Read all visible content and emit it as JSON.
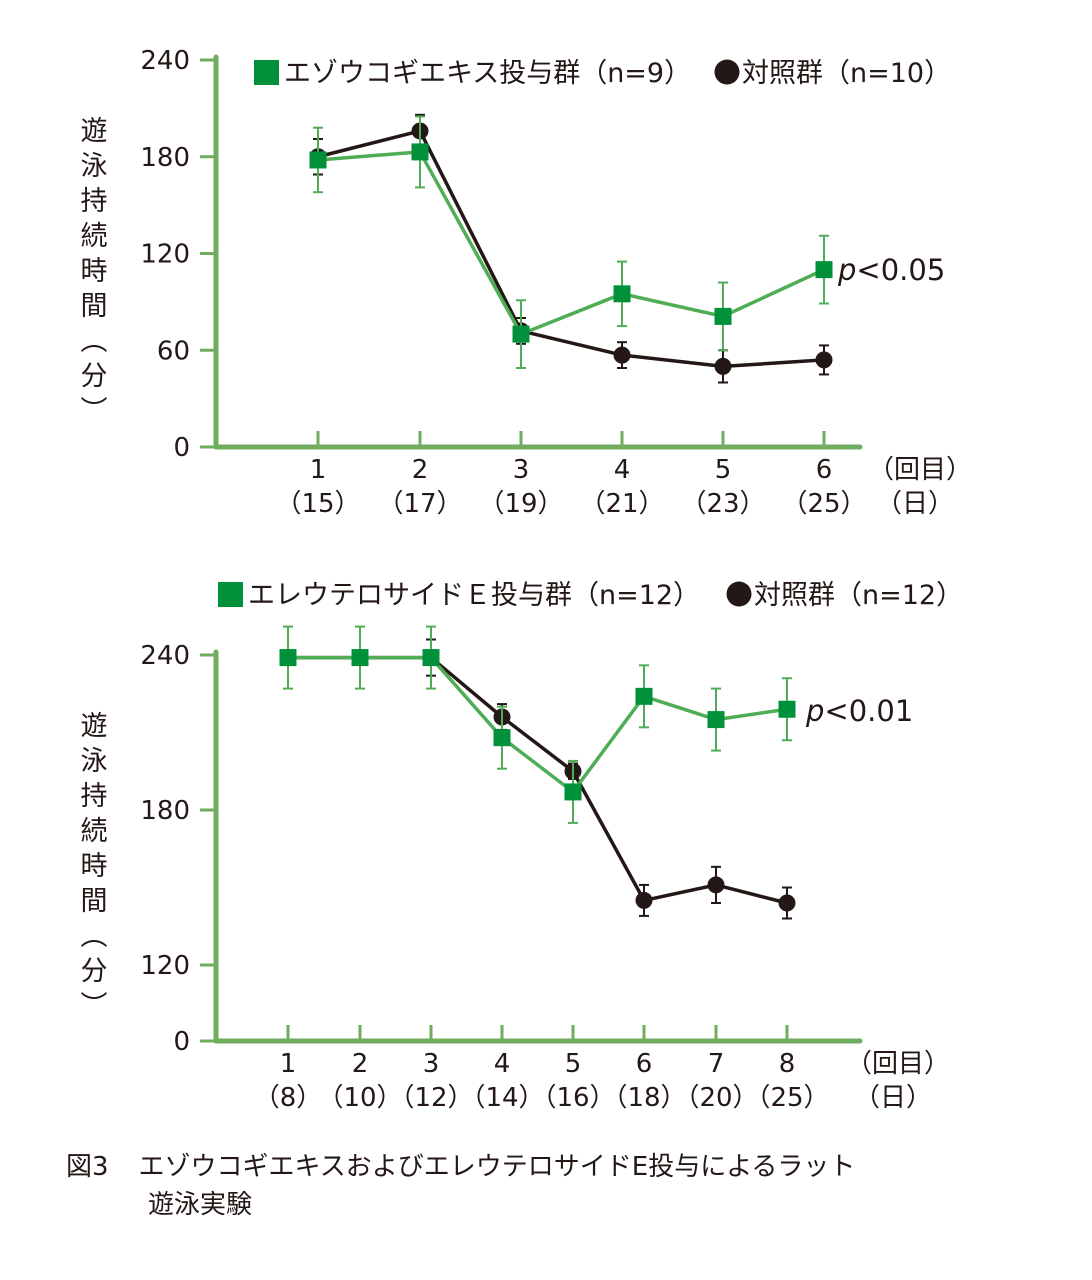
{
  "colors": {
    "axis": "#6fae5e",
    "treatment_marker": "#00913a",
    "treatment_line": "#4fae55",
    "control": "#231815"
  },
  "chart_data": [
    {
      "type": "line",
      "title": "",
      "legend": [
        {
          "marker": "square",
          "label": "エゾウコギエキス投与群（n=9）"
        },
        {
          "marker": "circle",
          "label": "対照群（n=10）"
        }
      ],
      "legend_placement": "top",
      "ylabel": "遊泳持続時間（分）",
      "ylabel_chars": [
        "遊",
        "泳",
        "持",
        "続",
        "時",
        "間",
        "︵",
        "分",
        "︶"
      ],
      "xlabel_line1": "（回目）",
      "xlabel_line2": "（日）",
      "yticks": [
        0,
        60,
        120,
        180,
        240
      ],
      "ylim": [
        0,
        240
      ],
      "categories": [
        "1",
        "2",
        "3",
        "4",
        "5",
        "6"
      ],
      "category_days": [
        "（15）",
        "（17）",
        "（19）",
        "（21）",
        "（23）",
        "（25）"
      ],
      "series": [
        {
          "name": "エゾウコギエキス投与群",
          "marker": "square",
          "values": [
            178,
            183,
            70,
            95,
            81,
            110
          ],
          "errors": [
            20,
            22,
            21,
            20,
            21,
            21
          ]
        },
        {
          "name": "対照群",
          "marker": "circle",
          "values": [
            180,
            196,
            72,
            57,
            50,
            54
          ],
          "errors": [
            11,
            10,
            8,
            8,
            10,
            9
          ]
        }
      ],
      "annotation": "p<0.05",
      "annotation_p": "p",
      "annotation_rest": "<0.05",
      "grid": false
    },
    {
      "type": "line",
      "title": "",
      "legend": [
        {
          "marker": "square",
          "label": "エレウテロサイドＥ投与群（n=12）"
        },
        {
          "marker": "circle",
          "label": "対照群（n=12）"
        }
      ],
      "legend_placement": "top",
      "ylabel": "遊泳持続時間（分）",
      "ylabel_chars": [
        "遊",
        "泳",
        "持",
        "続",
        "時",
        "間",
        "︵",
        "分",
        "︶"
      ],
      "xlabel_line1": "（回目）",
      "xlabel_line2": "（日）",
      "yticks": [
        0,
        120,
        180,
        240
      ],
      "ylim": [
        0,
        240
      ],
      "axis_break": "0–120 compressed",
      "categories": [
        "1",
        "2",
        "3",
        "4",
        "5",
        "6",
        "7",
        "8"
      ],
      "category_days": [
        "（8）",
        "（10）",
        "（12）",
        "（14）",
        "（16）",
        "（18）",
        "（20）",
        "（25）"
      ],
      "series": [
        {
          "name": "エレウテロサイドＥ投与群",
          "marker": "square",
          "values": [
            239,
            239,
            239,
            208,
            187,
            224,
            215,
            219
          ],
          "errors": [
            12,
            12,
            12,
            12,
            12,
            12,
            12,
            12
          ]
        },
        {
          "name": "対照群",
          "marker": "circle",
          "values": [
            239,
            239,
            239,
            216,
            195,
            145,
            151,
            144
          ],
          "errors": [
            0,
            0,
            7,
            5,
            3,
            6,
            7,
            6
          ]
        }
      ],
      "annotation": "p<0.01",
      "annotation_p": "p",
      "annotation_rest": "<0.01",
      "grid": false
    }
  ],
  "caption": {
    "label": "図3",
    "line1": "エゾウコギエキスおよびエレウテロサイドE投与によるラット",
    "line2": "遊泳実験"
  }
}
